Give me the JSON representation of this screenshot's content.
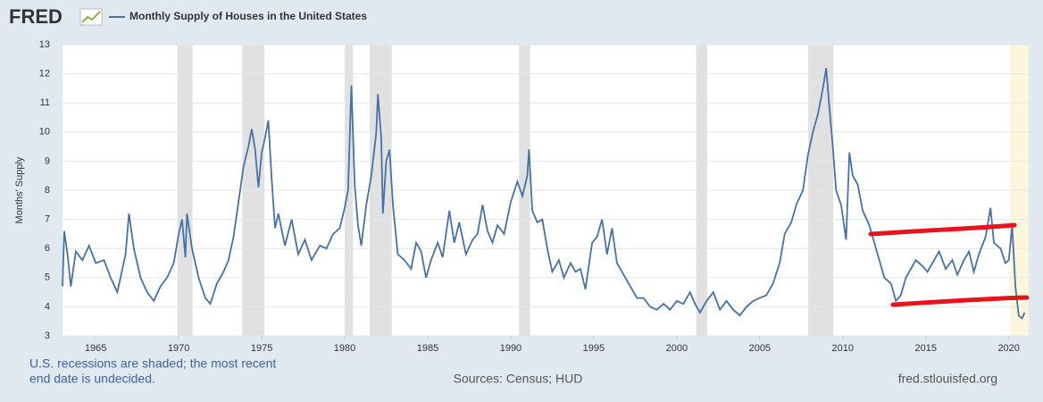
{
  "chart_data": {
    "type": "line",
    "logo": "FRED",
    "title": "Monthly Supply of Houses in the United States",
    "ylabel": "Months' Supply",
    "footnote": [
      "U.S. recessions are shaded; the most recent",
      "end date is undecided."
    ],
    "source": "Sources: Census; HUD",
    "site": "fred.stlouisfed.org",
    "xlim": [
      1963,
      2021.2
    ],
    "ylim": [
      3,
      13
    ],
    "xticks": [
      1965,
      1970,
      1975,
      1980,
      1985,
      1990,
      1995,
      2000,
      2005,
      2010,
      2015,
      2020
    ],
    "yticks": [
      3,
      4,
      5,
      6,
      7,
      8,
      9,
      10,
      11,
      12,
      13
    ],
    "grid": true,
    "recession_color": "#e1e1e1",
    "recessions": [
      [
        1969.92,
        1970.83
      ],
      [
        1973.83,
        1975.17
      ],
      [
        1980.0,
        1980.5
      ],
      [
        1981.5,
        1982.83
      ],
      [
        1990.5,
        1991.17
      ],
      [
        2001.17,
        2001.83
      ],
      [
        2007.92,
        2009.42
      ]
    ],
    "undecided_recession_color": "#fbf6dc",
    "undecided_recession_start": 2020.08,
    "series": [
      {
        "name": "Monthly Supply of Houses in the United States",
        "color": "#4572a7",
        "x": [
          1963.0,
          1963.1,
          1963.3,
          1963.5,
          1963.8,
          1964.2,
          1964.6,
          1965.0,
          1965.5,
          1965.9,
          1966.3,
          1966.8,
          1967.0,
          1967.3,
          1967.7,
          1968.1,
          1968.5,
          1968.9,
          1969.3,
          1969.7,
          1970.0,
          1970.2,
          1970.4,
          1970.5,
          1970.8,
          1971.2,
          1971.6,
          1971.9,
          1972.3,
          1972.7,
          1973.0,
          1973.3,
          1973.6,
          1973.9,
          1974.2,
          1974.4,
          1974.6,
          1974.8,
          1975.0,
          1975.2,
          1975.4,
          1975.6,
          1975.8,
          1976.0,
          1976.4,
          1976.8,
          1977.2,
          1977.6,
          1978.0,
          1978.5,
          1978.9,
          1979.3,
          1979.7,
          1980.0,
          1980.2,
          1980.4,
          1980.6,
          1980.8,
          1981.0,
          1981.3,
          1981.6,
          1981.9,
          1982.0,
          1982.2,
          1982.3,
          1982.5,
          1982.7,
          1982.9,
          1983.2,
          1983.6,
          1984.0,
          1984.3,
          1984.6,
          1984.9,
          1985.2,
          1985.6,
          1985.9,
          1986.3,
          1986.6,
          1986.9,
          1987.3,
          1987.7,
          1988.0,
          1988.3,
          1988.6,
          1988.9,
          1989.2,
          1989.6,
          1990.0,
          1990.4,
          1990.7,
          1991.0,
          1991.1,
          1991.3,
          1991.6,
          1991.9,
          1992.2,
          1992.5,
          1992.9,
          1993.2,
          1993.6,
          1993.9,
          1994.2,
          1994.5,
          1994.9,
          1995.2,
          1995.5,
          1995.8,
          1996.1,
          1996.4,
          1996.8,
          1997.2,
          1997.6,
          1998.0,
          1998.4,
          1998.8,
          1999.2,
          1999.6,
          2000.0,
          2000.4,
          2000.8,
          2001.1,
          2001.4,
          2001.8,
          2002.2,
          2002.6,
          2003.0,
          2003.4,
          2003.8,
          2004.2,
          2004.6,
          2005.0,
          2005.4,
          2005.8,
          2006.2,
          2006.5,
          2006.9,
          2007.2,
          2007.6,
          2007.9,
          2008.2,
          2008.5,
          2008.8,
          2009.0,
          2009.2,
          2009.4,
          2009.6,
          2009.9,
          2010.2,
          2010.4,
          2010.6,
          2010.9,
          2011.2,
          2011.6,
          2011.9,
          2012.2,
          2012.5,
          2012.9,
          2013.2,
          2013.5,
          2013.8,
          2014.1,
          2014.4,
          2014.8,
          2015.1,
          2015.4,
          2015.8,
          2016.2,
          2016.6,
          2016.9,
          2017.3,
          2017.6,
          2017.9,
          2018.2,
          2018.6,
          2018.9,
          2019.1,
          2019.5,
          2019.8,
          2020.0,
          2020.2,
          2020.4,
          2020.6,
          2020.8,
          2020.95
        ],
        "values": [
          4.7,
          6.6,
          5.8,
          4.7,
          5.9,
          5.6,
          6.1,
          5.5,
          5.6,
          5.0,
          4.5,
          5.8,
          7.2,
          6.0,
          5.0,
          4.5,
          4.2,
          4.7,
          5.0,
          5.5,
          6.5,
          7.0,
          5.7,
          7.2,
          6.0,
          5.0,
          4.3,
          4.1,
          4.8,
          5.2,
          5.6,
          6.4,
          7.6,
          8.8,
          9.5,
          10.1,
          9.4,
          8.1,
          9.3,
          9.8,
          10.4,
          8.4,
          6.7,
          7.2,
          6.1,
          7.0,
          5.8,
          6.3,
          5.6,
          6.1,
          6.0,
          6.5,
          6.7,
          7.4,
          8.0,
          11.6,
          8.2,
          6.8,
          6.1,
          7.5,
          8.5,
          10.0,
          11.3,
          9.8,
          7.2,
          9.0,
          9.4,
          7.5,
          5.8,
          5.6,
          5.3,
          6.2,
          5.9,
          5.0,
          5.6,
          6.2,
          5.7,
          7.3,
          6.2,
          6.9,
          5.8,
          6.3,
          6.5,
          7.5,
          6.6,
          6.2,
          6.8,
          6.5,
          7.6,
          8.3,
          7.8,
          8.5,
          9.4,
          7.3,
          6.9,
          7.0,
          6.0,
          5.2,
          5.6,
          5.0,
          5.5,
          5.2,
          5.3,
          4.6,
          6.2,
          6.4,
          7.0,
          5.8,
          6.7,
          5.5,
          5.1,
          4.7,
          4.3,
          4.3,
          4.0,
          3.9,
          4.1,
          3.9,
          4.2,
          4.1,
          4.5,
          4.1,
          3.8,
          4.2,
          4.5,
          3.9,
          4.2,
          3.9,
          3.7,
          4.0,
          4.2,
          4.3,
          4.4,
          4.8,
          5.5,
          6.5,
          6.9,
          7.5,
          8.0,
          9.2,
          10.0,
          10.6,
          11.5,
          12.2,
          10.8,
          9.5,
          8.0,
          7.5,
          6.3,
          9.3,
          8.5,
          8.2,
          7.3,
          6.8,
          6.2,
          5.6,
          5.0,
          4.8,
          4.2,
          4.4,
          5.0,
          5.3,
          5.6,
          5.4,
          5.2,
          5.5,
          5.9,
          5.3,
          5.6,
          5.1,
          5.6,
          5.9,
          5.2,
          5.8,
          6.4,
          7.4,
          6.2,
          6.0,
          5.5,
          5.6,
          6.8,
          4.7,
          3.7,
          3.6,
          3.8
        ]
      }
    ]
  }
}
